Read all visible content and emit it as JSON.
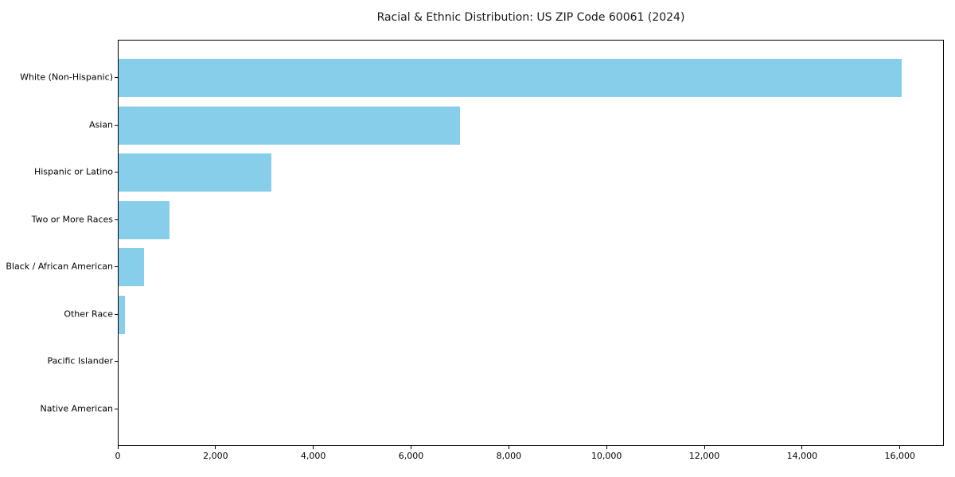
{
  "title": "Racial & Ethnic Distribution: US ZIP Code 60061 (2024)",
  "colors": {
    "bar": "#87CEEB",
    "axis": "#000000",
    "background": "#FFFFFF",
    "text": "#000000"
  },
  "chart_data": {
    "type": "bar",
    "orientation": "horizontal",
    "title": "Racial & Ethnic Distribution: US ZIP Code 60061 (2024)",
    "categories": [
      "White (Non-Hispanic)",
      "Asian",
      "Hispanic or Latino",
      "Two or More Races",
      "Black / African American",
      "Other Race",
      "Pacific Islander",
      "Native American"
    ],
    "values": [
      16050,
      7000,
      3130,
      1050,
      530,
      135,
      0,
      0
    ],
    "bar_color": "#87CEEB",
    "xlabel": "",
    "ylabel": "",
    "xlim": [
      0,
      16900
    ],
    "x_ticks": [
      0,
      2000,
      4000,
      6000,
      8000,
      10000,
      12000,
      14000,
      16000
    ],
    "x_tick_labels": [
      "0",
      "2,000",
      "4,000",
      "6,000",
      "8,000",
      "10,000",
      "12,000",
      "14,000",
      "16,000"
    ],
    "grid": false,
    "legend": null,
    "categories_order": "largest value at top"
  }
}
